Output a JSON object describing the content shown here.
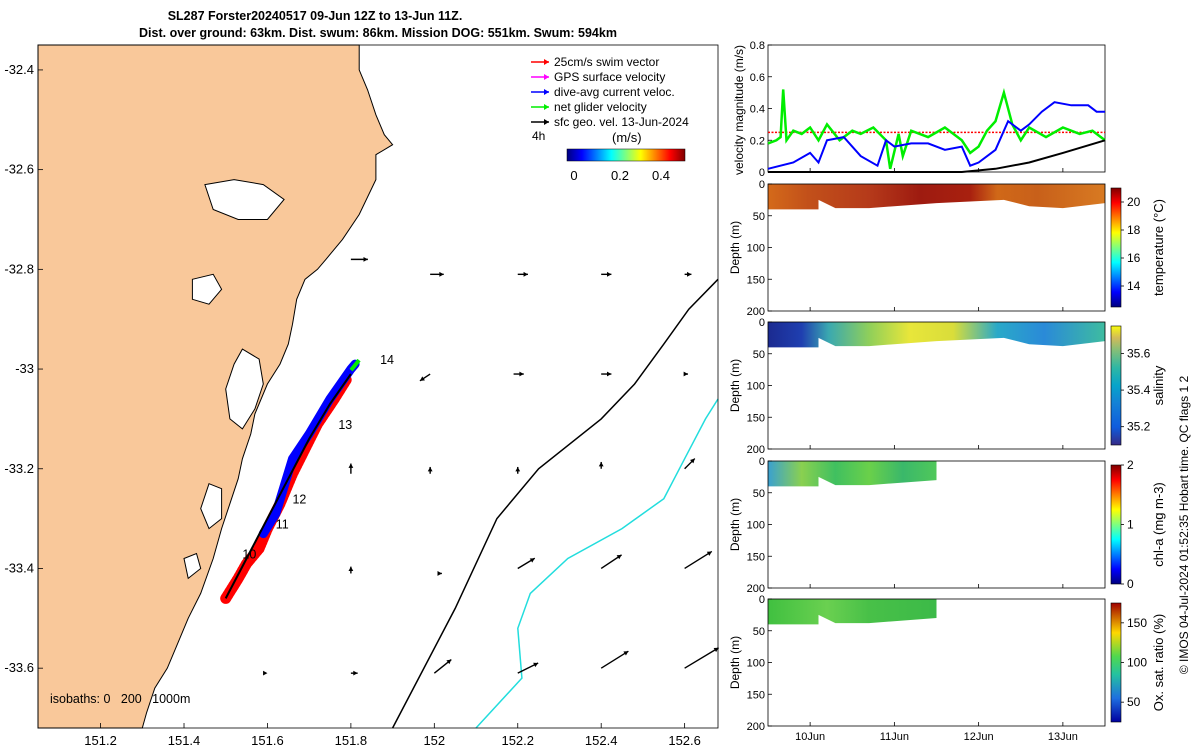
{
  "header": {
    "title_line1": "SL287 Forster20240517 09-Jun 12Z to 13-Jun 11Z.",
    "title_line2": "Dist. over ground: 63km. Dist. swum: 86km. Mission DOG: 551km. Swum: 594km"
  },
  "side_label": "© IMOS 04-Jul-2024 01:52:35 Hobart time. QC flags 1  2",
  "colors": {
    "land": "#f9c89a",
    "swim_vector": "#ff0000",
    "gps_velocity": "#ff00ff",
    "dive_avg": "#0000ff",
    "net_velocity": "#00ee00",
    "sfc_geo": "#000000",
    "isobath_200": "#000000",
    "isobath_1000": "#22dddd"
  },
  "map": {
    "xlim": [
      151.05,
      152.68
    ],
    "ylim": [
      -33.72,
      -32.35
    ],
    "xticks": [
      151.2,
      151.4,
      151.6,
      151.8,
      152,
      152.2,
      152.4,
      152.6
    ],
    "xtick_labels": [
      "151.2",
      "151.4",
      "151.6",
      "151.8",
      "152",
      "152.2",
      "152.4",
      "152.6"
    ],
    "yticks": [
      -32.4,
      -32.6,
      -32.8,
      -33,
      -33.2,
      -33.4,
      -33.6
    ],
    "ytick_labels": [
      "-32.4",
      "-32.6",
      "-32.8",
      "-33",
      "-33.2",
      "-33.4",
      "-33.6"
    ],
    "legend": [
      {
        "label": "25cm/s swim vector",
        "color": "#ff0000"
      },
      {
        "label": "GPS surface velocity",
        "color": "#ff00ff"
      },
      {
        "label": "dive-avg current veloc.",
        "color": "#0000ff"
      },
      {
        "label": "net glider velocity",
        "color": "#00ee00"
      },
      {
        "label": "sfc geo. vel. 13-Jun-2024",
        "color": "#000000"
      }
    ],
    "legend_note": "4h",
    "colorbar_label": "(m/s)",
    "colorbar_ticks": [
      "0",
      "0.2",
      "0.4"
    ],
    "isobath_note": "isobaths: 0   200   1000m",
    "day_labels": [
      {
        "text": "14",
        "lon": 151.87,
        "lat": -32.99
      },
      {
        "text": "13",
        "lon": 151.77,
        "lat": -33.12
      },
      {
        "text": "12",
        "lon": 151.66,
        "lat": -33.27
      },
      {
        "text": "11",
        "lon": 151.62,
        "lat": -33.32
      },
      {
        "text": "10",
        "lon": 151.54,
        "lat": -33.38
      }
    ],
    "coastline": [
      [
        151.05,
        -32.35
      ],
      [
        151.82,
        -32.35
      ],
      [
        151.82,
        -32.4
      ],
      [
        151.84,
        -32.44
      ],
      [
        151.86,
        -32.49
      ],
      [
        151.88,
        -32.53
      ],
      [
        151.9,
        -32.55
      ],
      [
        151.86,
        -32.57
      ],
      [
        151.86,
        -32.62
      ],
      [
        151.82,
        -32.69
      ],
      [
        151.78,
        -32.74
      ],
      [
        151.74,
        -32.78
      ],
      [
        151.72,
        -32.8
      ],
      [
        151.69,
        -32.82
      ],
      [
        151.67,
        -32.86
      ],
      [
        151.66,
        -32.91
      ],
      [
        151.65,
        -32.95
      ],
      [
        151.63,
        -32.99
      ],
      [
        151.6,
        -33.03
      ],
      [
        151.57,
        -33.09
      ],
      [
        151.56,
        -33.13
      ],
      [
        151.54,
        -33.18
      ],
      [
        151.53,
        -33.22
      ],
      [
        151.51,
        -33.27
      ],
      [
        151.49,
        -33.32
      ],
      [
        151.47,
        -33.38
      ],
      [
        151.44,
        -33.45
      ],
      [
        151.41,
        -33.5
      ],
      [
        151.38,
        -33.56
      ],
      [
        151.36,
        -33.6
      ],
      [
        151.33,
        -33.64
      ],
      [
        151.31,
        -33.69
      ],
      [
        151.3,
        -33.72
      ],
      [
        151.05,
        -33.72
      ]
    ],
    "lakes": [
      [
        [
          151.54,
          -32.96
        ],
        [
          151.58,
          -32.98
        ],
        [
          151.59,
          -33.03
        ],
        [
          151.57,
          -33.08
        ],
        [
          151.54,
          -33.12
        ],
        [
          151.51,
          -33.1
        ],
        [
          151.5,
          -33.04
        ],
        [
          151.52,
          -32.99
        ]
      ],
      [
        [
          151.45,
          -32.63
        ],
        [
          151.52,
          -32.62
        ],
        [
          151.59,
          -32.63
        ],
        [
          151.64,
          -32.66
        ],
        [
          151.6,
          -32.7
        ],
        [
          151.53,
          -32.7
        ],
        [
          151.47,
          -32.68
        ]
      ],
      [
        [
          151.42,
          -32.82
        ],
        [
          151.47,
          -32.81
        ],
        [
          151.49,
          -32.84
        ],
        [
          151.46,
          -32.87
        ],
        [
          151.42,
          -32.86
        ]
      ],
      [
        [
          151.46,
          -33.23
        ],
        [
          151.49,
          -33.24
        ],
        [
          151.49,
          -33.3
        ],
        [
          151.46,
          -33.32
        ],
        [
          151.44,
          -33.28
        ]
      ],
      [
        [
          151.4,
          -33.38
        ],
        [
          151.43,
          -33.37
        ],
        [
          151.44,
          -33.4
        ],
        [
          151.41,
          -33.42
        ]
      ]
    ],
    "isobath_200": [
      [
        151.9,
        -33.72
      ],
      [
        152.05,
        -33.48
      ],
      [
        152.15,
        -33.3
      ],
      [
        152.25,
        -33.2
      ],
      [
        152.4,
        -33.1
      ],
      [
        152.48,
        -33.03
      ],
      [
        152.55,
        -32.95
      ],
      [
        152.61,
        -32.88
      ],
      [
        152.68,
        -32.82
      ]
    ],
    "isobath_1000": [
      [
        152.1,
        -33.72
      ],
      [
        152.21,
        -33.62
      ],
      [
        152.2,
        -33.52
      ],
      [
        152.23,
        -33.45
      ],
      [
        152.32,
        -33.38
      ],
      [
        152.45,
        -33.32
      ],
      [
        152.55,
        -33.26
      ],
      [
        152.6,
        -33.18
      ],
      [
        152.65,
        -33.1
      ],
      [
        152.68,
        -33.06
      ]
    ],
    "track_red": [
      [
        151.5,
        -33.46
      ],
      [
        151.53,
        -33.42
      ],
      [
        151.55,
        -33.39
      ],
      [
        151.58,
        -33.36
      ],
      [
        151.6,
        -33.32
      ],
      [
        151.63,
        -33.27
      ],
      [
        151.66,
        -33.21
      ],
      [
        151.69,
        -33.16
      ],
      [
        151.72,
        -33.11
      ],
      [
        151.76,
        -33.06
      ],
      [
        151.79,
        -33.02
      ]
    ],
    "track_blue": [
      [
        151.59,
        -33.33
      ],
      [
        151.62,
        -33.29
      ],
      [
        151.66,
        -33.18
      ],
      [
        151.7,
        -33.13
      ],
      [
        151.75,
        -33.06
      ],
      [
        151.8,
        -33.0
      ],
      [
        151.81,
        -32.99
      ]
    ],
    "track_black": [
      [
        151.5,
        -33.46
      ],
      [
        151.55,
        -33.38
      ],
      [
        151.6,
        -33.3
      ],
      [
        151.65,
        -33.22
      ],
      [
        151.7,
        -33.14
      ],
      [
        151.75,
        -33.07
      ],
      [
        151.8,
        -33.01
      ]
    ],
    "current_vectors": [
      [
        151.8,
        -32.78,
        0.05,
        0.0
      ],
      [
        151.99,
        -32.81,
        0.04,
        0.0
      ],
      [
        152.2,
        -32.81,
        0.03,
        0.0
      ],
      [
        152.4,
        -32.81,
        0.03,
        0.0
      ],
      [
        152.6,
        -32.81,
        0.02,
        0.0
      ],
      [
        151.99,
        -33.01,
        -0.03,
        -0.02
      ],
      [
        152.19,
        -33.01,
        0.03,
        0.0
      ],
      [
        152.4,
        -33.01,
        0.03,
        0.0
      ],
      [
        152.6,
        -33.01,
        0.01,
        0.0
      ],
      [
        151.8,
        -33.21,
        0.0,
        0.03
      ],
      [
        151.99,
        -33.21,
        0.0,
        0.02
      ],
      [
        152.2,
        -33.21,
        0.0,
        0.02
      ],
      [
        152.4,
        -33.2,
        0.0,
        0.02
      ],
      [
        152.6,
        -33.2,
        0.03,
        0.03
      ],
      [
        151.8,
        -33.41,
        0.0,
        0.02
      ],
      [
        152.01,
        -33.41,
        0.01,
        0.0
      ],
      [
        152.2,
        -33.4,
        0.05,
        0.03
      ],
      [
        152.4,
        -33.4,
        0.06,
        0.04
      ],
      [
        152.6,
        -33.4,
        0.08,
        0.05
      ],
      [
        151.6,
        -33.61,
        0.0,
        0.0
      ],
      [
        151.8,
        -33.61,
        0.02,
        0.0
      ],
      [
        152.0,
        -33.61,
        0.05,
        0.04
      ],
      [
        152.2,
        -33.61,
        0.06,
        0.03
      ],
      [
        152.4,
        -33.6,
        0.08,
        0.05
      ],
      [
        152.6,
        -33.6,
        0.1,
        0.06
      ]
    ]
  },
  "velocity_panel": {
    "ylabel": "velocity magnitude (m/s)",
    "ylim": [
      0,
      0.8
    ],
    "yticks": [
      0,
      0.2,
      0.4,
      0.6,
      0.8
    ],
    "ytick_labels": [
      "0",
      "0.2",
      "0.4",
      "0.6",
      "0.8"
    ],
    "xlim": [
      9.5,
      13.5
    ],
    "swim_ref": 0.25,
    "dive_avg": [
      [
        9.5,
        0.02
      ],
      [
        9.8,
        0.06
      ],
      [
        10.0,
        0.12
      ],
      [
        10.1,
        0.06
      ],
      [
        10.2,
        0.2
      ],
      [
        10.4,
        0.22
      ],
      [
        10.6,
        0.1
      ],
      [
        10.8,
        0.04
      ],
      [
        10.9,
        0.2
      ],
      [
        11.0,
        0.16
      ],
      [
        11.2,
        0.18
      ],
      [
        11.4,
        0.18
      ],
      [
        11.6,
        0.14
      ],
      [
        11.8,
        0.16
      ],
      [
        11.9,
        0.04
      ],
      [
        12.0,
        0.06
      ],
      [
        12.2,
        0.14
      ],
      [
        12.35,
        0.32
      ],
      [
        12.5,
        0.26
      ],
      [
        12.6,
        0.3
      ],
      [
        12.75,
        0.38
      ],
      [
        12.9,
        0.44
      ],
      [
        13.1,
        0.42
      ],
      [
        13.3,
        0.42
      ],
      [
        13.4,
        0.38
      ],
      [
        13.5,
        0.38
      ]
    ],
    "net": [
      [
        9.5,
        0.18
      ],
      [
        9.6,
        0.2
      ],
      [
        9.65,
        0.22
      ],
      [
        9.68,
        0.52
      ],
      [
        9.72,
        0.2
      ],
      [
        9.8,
        0.26
      ],
      [
        9.9,
        0.24
      ],
      [
        10.0,
        0.28
      ],
      [
        10.1,
        0.2
      ],
      [
        10.2,
        0.3
      ],
      [
        10.35,
        0.2
      ],
      [
        10.5,
        0.26
      ],
      [
        10.6,
        0.24
      ],
      [
        10.75,
        0.28
      ],
      [
        10.9,
        0.2
      ],
      [
        10.95,
        0.02
      ],
      [
        11.05,
        0.24
      ],
      [
        11.1,
        0.1
      ],
      [
        11.2,
        0.26
      ],
      [
        11.4,
        0.22
      ],
      [
        11.6,
        0.28
      ],
      [
        11.8,
        0.2
      ],
      [
        11.9,
        0.12
      ],
      [
        12.0,
        0.16
      ],
      [
        12.1,
        0.26
      ],
      [
        12.2,
        0.32
      ],
      [
        12.3,
        0.5
      ],
      [
        12.4,
        0.3
      ],
      [
        12.5,
        0.2
      ],
      [
        12.6,
        0.28
      ],
      [
        12.8,
        0.22
      ],
      [
        13.0,
        0.28
      ],
      [
        13.2,
        0.24
      ],
      [
        13.35,
        0.26
      ],
      [
        13.5,
        0.2
      ]
    ],
    "geo": [
      [
        9.5,
        0.0
      ],
      [
        11.8,
        0.0
      ],
      [
        12.2,
        0.02
      ],
      [
        12.6,
        0.06
      ],
      [
        13.0,
        0.12
      ],
      [
        13.5,
        0.2
      ]
    ]
  },
  "section_panels": [
    {
      "id": "temperature",
      "label": "temperature (°C)",
      "cmin": 12.5,
      "cmax": 21,
      "ticks": [
        14,
        16,
        18,
        20
      ],
      "tick_labels": [
        "14",
        "16",
        "18",
        "20"
      ],
      "tmax": 13.5,
      "profile": [
        [
          9.5,
          40
        ],
        [
          10.1,
          40
        ],
        [
          10.1,
          25
        ],
        [
          10.3,
          38
        ],
        [
          10.7,
          38
        ],
        [
          11.5,
          30
        ],
        [
          12.3,
          25
        ],
        [
          12.6,
          35
        ],
        [
          13.0,
          38
        ],
        [
          13.5,
          30
        ]
      ]
    },
    {
      "id": "salinity",
      "label": "salinity",
      "cmin": 35.1,
      "cmax": 35.75,
      "ticks": [
        35.2,
        35.4,
        35.6
      ],
      "tick_labels": [
        "35.2",
        "35.4",
        "35.6"
      ],
      "tmax": 13.5,
      "profile": [
        [
          9.5,
          40
        ],
        [
          10.1,
          40
        ],
        [
          10.1,
          25
        ],
        [
          10.3,
          38
        ],
        [
          10.7,
          38
        ],
        [
          11.5,
          30
        ],
        [
          12.3,
          25
        ],
        [
          12.6,
          35
        ],
        [
          13.0,
          38
        ],
        [
          13.5,
          30
        ]
      ]
    },
    {
      "id": "chla",
      "label": "chl-a (mg m-3)",
      "cmin": 0,
      "cmax": 2,
      "ticks": [
        0,
        1,
        2
      ],
      "tick_labels": [
        "0",
        "1",
        "2"
      ],
      "tmax": 11.5,
      "profile": [
        [
          9.5,
          40
        ],
        [
          10.1,
          40
        ],
        [
          10.1,
          25
        ],
        [
          10.3,
          38
        ],
        [
          10.7,
          38
        ],
        [
          11.5,
          30
        ]
      ]
    },
    {
      "id": "oxygen",
      "label": "Ox. sat. ratio (%)",
      "cmin": 25,
      "cmax": 175,
      "ticks": [
        50,
        100,
        150
      ],
      "tick_labels": [
        "50",
        "100",
        "150"
      ],
      "tmax": 11.5,
      "profile": [
        [
          9.5,
          40
        ],
        [
          10.1,
          40
        ],
        [
          10.1,
          25
        ],
        [
          10.3,
          38
        ],
        [
          10.7,
          38
        ],
        [
          11.5,
          30
        ]
      ]
    }
  ],
  "depth_axis": {
    "ylabel": "Depth (m)",
    "ylim": [
      0,
      200
    ],
    "yticks": [
      0,
      50,
      100,
      150,
      200
    ],
    "ytick_labels": [
      "0",
      "50",
      "100",
      "150",
      "200"
    ]
  },
  "time_axis": {
    "xticks": [
      10,
      11,
      12,
      13
    ],
    "xtick_labels": [
      "10Jun",
      "11Jun",
      "12Jun",
      "13Jun"
    ]
  }
}
